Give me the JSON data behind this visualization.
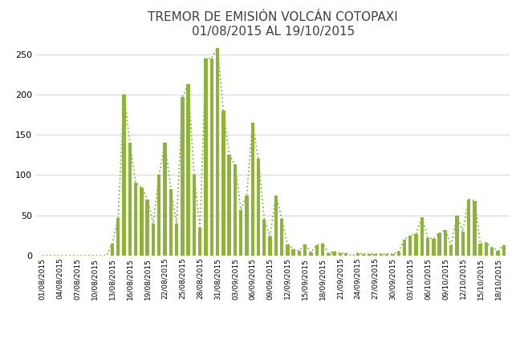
{
  "title_line1": "TREMOR DE EMISIÓN VOLCÁN COTOPAXI",
  "title_line2": "01/08/2015 AL 19/10/2015",
  "bar_color": "#8db33a",
  "line_color": "#8db33a",
  "background_color": "#ffffff",
  "ylim": [
    0,
    260
  ],
  "yticks": [
    0,
    50,
    100,
    150,
    200,
    250
  ],
  "values": [
    0,
    0,
    0,
    0,
    0,
    0,
    0,
    0,
    0,
    0,
    0,
    0,
    15,
    47,
    200,
    140,
    90,
    85,
    70,
    40,
    100,
    140,
    83,
    40,
    197,
    213,
    100,
    35,
    245,
    245,
    258,
    180,
    125,
    113,
    57,
    75,
    165,
    120,
    45,
    24,
    75,
    46,
    14,
    8,
    6,
    14,
    4,
    13,
    15,
    3,
    5,
    3,
    3,
    0,
    3,
    2,
    2,
    2,
    2,
    2,
    2,
    5,
    20,
    25,
    27,
    48,
    22,
    21,
    28,
    32,
    13,
    50,
    30,
    70,
    68,
    15,
    16,
    10,
    6,
    13
  ],
  "xtick_labels": [
    "01/08/2015",
    "04/08/2015",
    "07/08/2015",
    "10/08/2015",
    "13/08/2015",
    "16/08/2015",
    "19/08/2015",
    "22/08/2015",
    "25/08/2015",
    "28/08/2015",
    "31/08/2015",
    "03/09/2015",
    "06/09/2015",
    "09/09/2015",
    "12/09/2015",
    "15/09/2015",
    "18/09/2015",
    "21/09/2015",
    "24/09/2015",
    "27/09/2015",
    "30/09/2015",
    "03/10/2015",
    "06/10/2015",
    "09/10/2015",
    "12/10/2015",
    "15/10/2015",
    "18/10/2015"
  ],
  "xtick_positions": [
    0,
    3,
    6,
    9,
    12,
    15,
    18,
    21,
    24,
    27,
    30,
    33,
    36,
    39,
    42,
    45,
    48,
    51,
    54,
    57,
    60,
    63,
    66,
    69,
    72,
    75,
    78
  ],
  "figsize": [
    6.48,
    4.43
  ],
  "dpi": 100,
  "title_fontsize": 11,
  "ytick_fontsize": 8,
  "xtick_fontsize": 6.5,
  "bar_width": 0.6,
  "grid_color": "#d9d9d9",
  "grid_linewidth": 0.8,
  "line_linewidth": 1.3,
  "line_dotsize": 1.8
}
